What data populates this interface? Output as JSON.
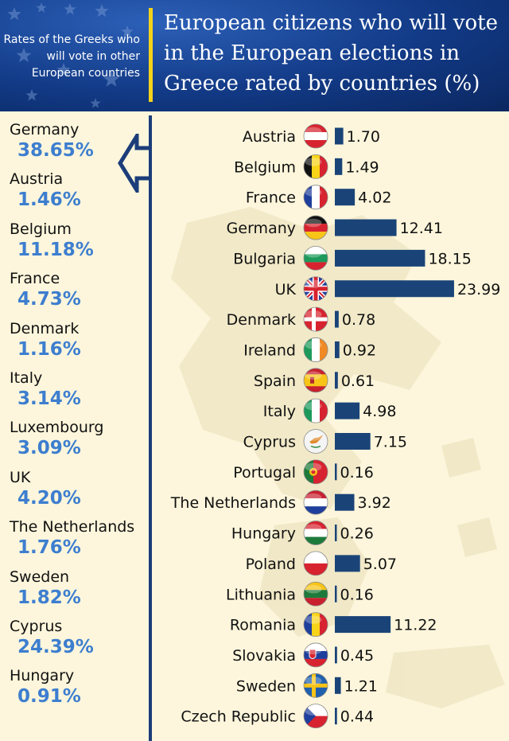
{
  "header": {
    "subtitle": "Rates of the Greeks who will vote in other European countries",
    "title": "European citizens who will vote in the European elections in Greece rated by countries (%)"
  },
  "greeks_abroad": [
    {
      "country": "Germany",
      "value": "38.65%"
    },
    {
      "country": "Austria",
      "value": "1.46%"
    },
    {
      "country": "Belgium",
      "value": "11.18%"
    },
    {
      "country": "France",
      "value": "4.73%"
    },
    {
      "country": "Denmark",
      "value": "1.16%"
    },
    {
      "country": "Italy",
      "value": "3.14%"
    },
    {
      "country": "Luxembourg",
      "value": "3.09%"
    },
    {
      "country": "UK",
      "value": "4.20%"
    },
    {
      "country": "The Netherlands",
      "value": "1.76%"
    },
    {
      "country": "Sweden",
      "value": "1.82%"
    },
    {
      "country": "Cyprus",
      "value": "24.39%"
    },
    {
      "country": "Hungary",
      "value": "0.91%"
    }
  ],
  "chart_data": {
    "type": "bar",
    "orientation": "horizontal",
    "categories": [
      "Austria",
      "Belgium",
      "France",
      "Germany",
      "Bulgaria",
      "UK",
      "Denmark",
      "Ireland",
      "Spain",
      "Italy",
      "Cyprus",
      "Portugal",
      "The Netherlands",
      "Hungary",
      "Poland",
      "Lithuania",
      "Romania",
      "Slovakia",
      "Sweden",
      "Czech Republic"
    ],
    "values": [
      1.7,
      1.49,
      4.02,
      12.41,
      18.15,
      23.99,
      0.78,
      0.92,
      0.61,
      4.98,
      7.15,
      0.16,
      3.92,
      0.26,
      5.07,
      0.16,
      11.22,
      0.45,
      1.21,
      0.44
    ],
    "value_labels": [
      "1.70",
      "1.49",
      "4.02",
      "12.41",
      "18.15",
      "23.99",
      "0.78",
      "0.92",
      "0.61",
      "4.98",
      "7.15",
      "0.16",
      "3.92",
      "0.26",
      "5.07",
      "0.16",
      "11.22",
      "0.45",
      "1.21",
      "0.44"
    ],
    "flag_icons": [
      "flag-austria-icon",
      "flag-belgium-icon",
      "flag-france-icon",
      "flag-germany-icon",
      "flag-bulgaria-icon",
      "flag-uk-icon",
      "flag-denmark-icon",
      "flag-ireland-icon",
      "flag-spain-icon",
      "flag-italy-icon",
      "flag-cyprus-icon",
      "flag-portugal-icon",
      "flag-netherlands-icon",
      "flag-hungary-icon",
      "flag-poland-icon",
      "flag-lithuania-icon",
      "flag-romania-icon",
      "flag-slovakia-icon",
      "flag-sweden-icon",
      "flag-czech-icon"
    ],
    "xlim": [
      0,
      24
    ],
    "bar_color": "#1a4478",
    "grid": false,
    "legend": false
  },
  "colors": {
    "header_bg": "#123a86",
    "accent_yellow": "#f5d21a",
    "left_value": "#3d7ecf",
    "background": "#fdf6dc",
    "divider": "#1c3d7a"
  }
}
